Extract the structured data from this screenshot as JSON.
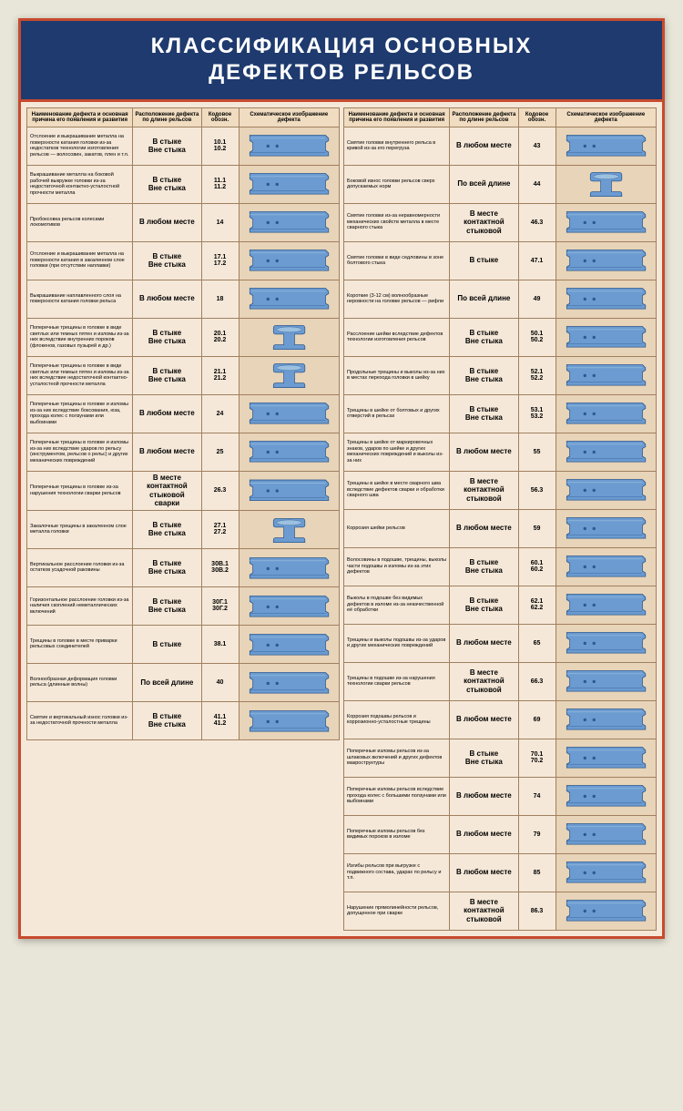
{
  "title_line1": "КЛАССИФИКАЦИЯ ОСНОВНЫХ",
  "title_line2": "ДЕФЕКТОВ РЕЛЬСОВ",
  "headers": {
    "col1": "Наименование дефекта и основная причина его появления и развития",
    "col2": "Расположение дефекта по длине рельсов",
    "col3": "Кодовое обозн.",
    "col4": "Схематическое изображение дефекта"
  },
  "colors": {
    "header_bg": "#1e3a6e",
    "border": "#c84a2e",
    "table_bg": "#f5e8d8",
    "img_bg": "#e8d4b8",
    "rail_fill": "#6b9bd1",
    "rail_stroke": "#2c5a8f"
  },
  "left_rows": [
    {
      "desc": "Отслоение и выкрашивание металла на поверхности катания головки из-за недостатков технологии изготовления рельсов — волосовин, закатов, плен и т.п.",
      "loc": "В стыке\nВне стыка",
      "code": "10.1\n10.2",
      "shape": "side"
    },
    {
      "desc": "Выкрашивание металла на боковой рабочей выкружке головки из-за недостаточной контактно-усталостной прочности металла",
      "loc": "В стыке\nВне стыка",
      "code": "11.1\n11.2",
      "shape": "side"
    },
    {
      "desc": "Пробоксовка рельсов колесами локомотивов",
      "loc": "В любом месте",
      "code": "14",
      "shape": "side"
    },
    {
      "desc": "Отслоение и выкрашивание металла на поверхности катания в закаленном слое головки (при отсутствии наплавки)",
      "loc": "В стыке\nВне стыка",
      "code": "17.1\n17.2",
      "shape": "side"
    },
    {
      "desc": "Выкрашивание наплавленного слоя на поверхности катания головки рельса",
      "loc": "В любом месте",
      "code": "18",
      "shape": "side"
    },
    {
      "desc": "Поперечные трещины в головке в виде светлых или темных пятен и изломы из-за них вследствие внутренних пороков (флокенов, газовых пузырей и др.)",
      "loc": "В стыке\nВне стыка",
      "code": "20.1\n20.2",
      "shape": "cross"
    },
    {
      "desc": "Поперечные трещины в головке в виде светлых или темных пятен и изломы из-за них вследствие недостаточной контактно-усталостной прочности металла",
      "loc": "В стыке\nВне стыка",
      "code": "21.1\n21.2",
      "shape": "cross"
    },
    {
      "desc": "Поперечные трещины в головке и изломы из-за них вследствие боксования, юза, прохода колес с ползунами или выбоинами",
      "loc": "В любом месте",
      "code": "24",
      "shape": "side"
    },
    {
      "desc": "Поперечные трещины в головке и изломы из-за них вследствие ударов по рельсу (инструментом, рельсов о рельс) и других механических повреждений",
      "loc": "В любом месте",
      "code": "25",
      "shape": "side"
    },
    {
      "desc": "Поперечные трещины в головке из-за нарушения технологии сварки рельсов",
      "loc": "В месте контактной стыковой сварки",
      "code": "26.3",
      "shape": "side"
    },
    {
      "desc": "Закалочные трещины в закаленном слое металла головки",
      "loc": "В стыке\nВне стыка",
      "code": "27.1\n27.2",
      "shape": "cross"
    },
    {
      "desc": "Вертикальное расслоение головки из-за остатков усадочной раковины",
      "loc": "В стыке\nВне стыка",
      "code": "30В.1\n30В.2",
      "shape": "side"
    },
    {
      "desc": "Горизонтальное расслоение головки из-за наличия скоплений неметаллических включений",
      "loc": "В стыке\nВне стыка",
      "code": "30Г.1\n30Г.2",
      "shape": "side"
    },
    {
      "desc": "Трещины в головке в месте приварки рельсовых соединителей",
      "loc": "В стыке",
      "code": "38.1",
      "shape": "side"
    },
    {
      "desc": "Волнообразная деформация головки рельса (длинные волны)",
      "loc": "По всей длине",
      "code": "40",
      "shape": "side"
    },
    {
      "desc": "Смятие и вертикальный износ головки из-за недостаточной прочности металла",
      "loc": "В стыке\nВне стыка",
      "code": "41.1\n41.2",
      "shape": "side"
    }
  ],
  "right_rows": [
    {
      "desc": "Смятие головки внутреннего рельса в кривой из-за его перегруза",
      "loc": "В любом месте",
      "code": "43",
      "shape": "side"
    },
    {
      "desc": "Боковой износ головки рельсов сверх допускаемых норм",
      "loc": "По всей длине",
      "code": "44",
      "shape": "cross"
    },
    {
      "desc": "Смятие головки из-за неравномерности механических свойств металла в месте сварного стыка",
      "loc": "В месте контактной стыковой",
      "code": "46.3",
      "shape": "side"
    },
    {
      "desc": "Смятие головки в виде седловины в зоне болтового стыка",
      "loc": "В стыке",
      "code": "47.1",
      "shape": "side"
    },
    {
      "desc": "Короткие (3-12 см) волнообразные неровности на головке рельсов — рифли",
      "loc": "По всей длине",
      "code": "49",
      "shape": "side"
    },
    {
      "desc": "Расслоение шейки вследствие дефектов технологии изготовления рельсов",
      "loc": "В стыке\nВне стыка",
      "code": "50.1\n50.2",
      "shape": "side"
    },
    {
      "desc": "Продольные трещины и выколы из-за них в местах перехода головки в шейку",
      "loc": "В стыке\nВне стыка",
      "code": "52.1\n52.2",
      "shape": "side"
    },
    {
      "desc": "Трещины в шейке от болтовых и других отверстий в рельсах",
      "loc": "В стыке\nВне стыка",
      "code": "53.1\n53.2",
      "shape": "side"
    },
    {
      "desc": "Трещины в шейке от маркировочных знаков, ударов по шейке и других механических повреждений и выколы из-за них",
      "loc": "В любом месте",
      "code": "55",
      "shape": "side"
    },
    {
      "desc": "Трещины в шейке в месте сварного шва вследствие дефектов сварки и обработки сварного шва",
      "loc": "В месте контактной стыковой",
      "code": "56.3",
      "shape": "side"
    },
    {
      "desc": "Коррозия шейки рельсов",
      "loc": "В любом месте",
      "code": "59",
      "shape": "side"
    },
    {
      "desc": "Волосовины в подошве, трещины, выколы части подошвы и изломы из-за этих дефектов",
      "loc": "В стыке\nВне стыка",
      "code": "60.1\n60.2",
      "shape": "side"
    },
    {
      "desc": "Выколы в подошве без видимых дефектов в изломе из-за некачественной её обработки",
      "loc": "В стыке\nВне стыка",
      "code": "62.1\n62.2",
      "shape": "side"
    },
    {
      "desc": "Трещины и выколы подошвы из-за ударов и других механических повреждений",
      "loc": "В любом месте",
      "code": "65",
      "shape": "side"
    },
    {
      "desc": "Трещины в подошве из-за нарушения технологии сварки рельсов",
      "loc": "В месте контактной стыковой",
      "code": "66.3",
      "shape": "side"
    },
    {
      "desc": "Коррозия подошвы рельсов и коррозионно-усталостные трещины",
      "loc": "В любом месте",
      "code": "69",
      "shape": "side"
    },
    {
      "desc": "Поперечные изломы рельсов из-за шлаковых включений и других дефектов макроструктуры",
      "loc": "В стыке\nВне стыка",
      "code": "70.1\n70.2",
      "shape": "side"
    },
    {
      "desc": "Поперечные изломы рельсов вследствие прохода колес с большими ползунами или выбоинами",
      "loc": "В любом месте",
      "code": "74",
      "shape": "side"
    },
    {
      "desc": "Поперечные изломы рельсов без видимых пороков в изломе",
      "loc": "В любом месте",
      "code": "79",
      "shape": "side"
    },
    {
      "desc": "Изгибы рельсов при выгрузке с подвижного состава, ударах по рельсу и т.п.",
      "loc": "В любом месте",
      "code": "85",
      "shape": "side"
    },
    {
      "desc": "Нарушение прямолинейности рельсов, допущенное при сварке",
      "loc": "В месте контактной стыковой",
      "code": "86.3",
      "shape": "side"
    }
  ]
}
